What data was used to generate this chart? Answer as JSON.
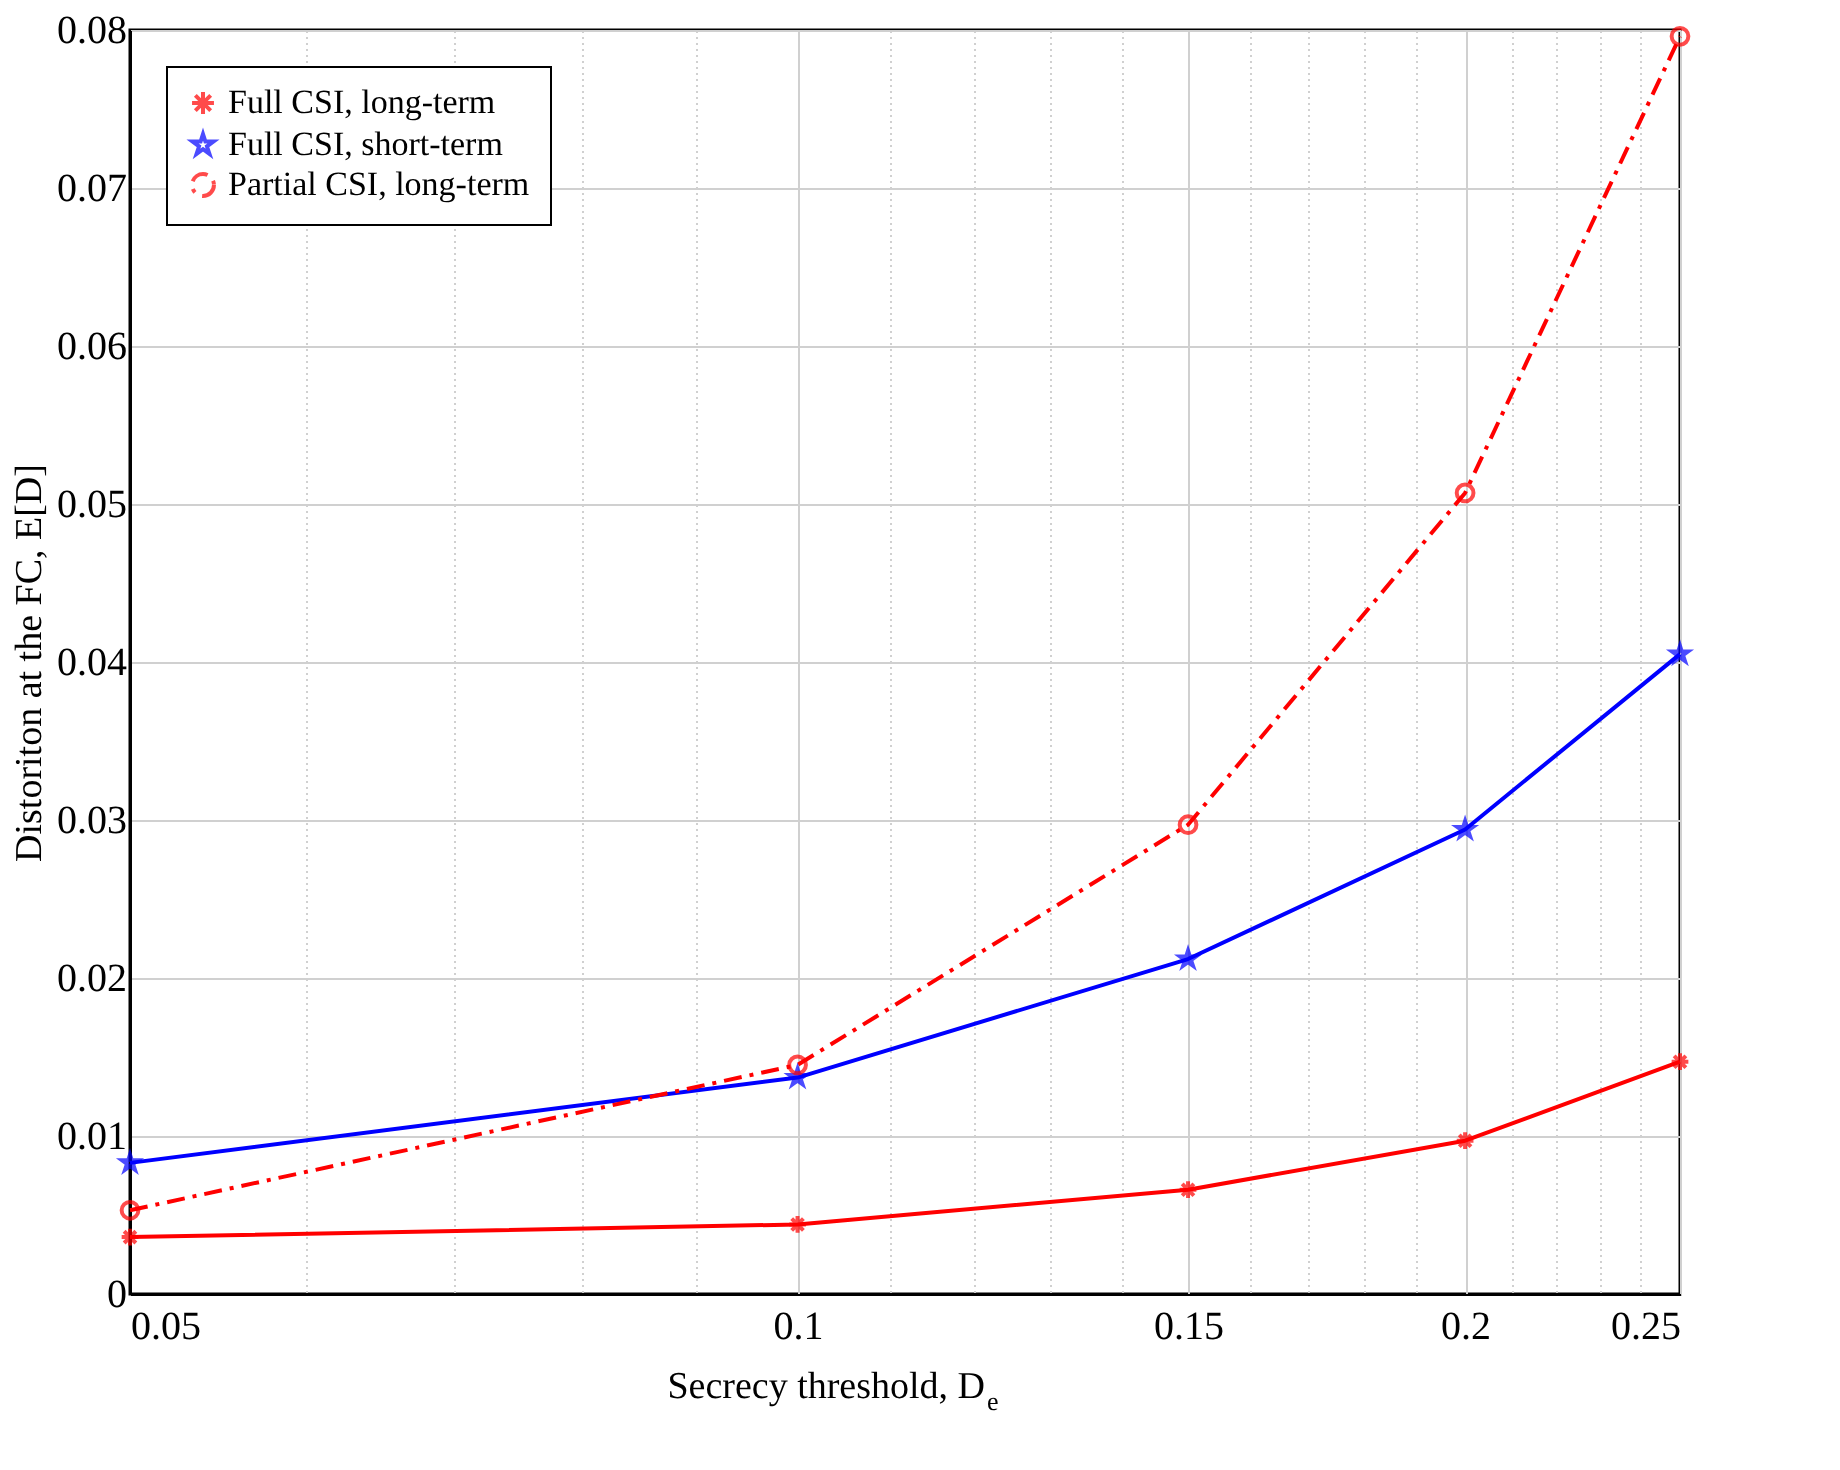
{
  "chart_data": {
    "type": "line",
    "xlabel": "Secrecy threshold, D$_{e}$",
    "ylabel": "Distoriton at the FC, E[D]",
    "x": [
      0.05,
      0.1,
      0.15,
      0.2,
      0.25
    ],
    "log": "x",
    "xlim": [
      0.05,
      0.25
    ],
    "ylim": [
      0,
      0.08
    ],
    "xticks": [
      0.05,
      {
        "value": 0.06,
        "label": null
      },
      {
        "value": 0.07,
        "label": null
      },
      {
        "value": 0.08,
        "label": null
      },
      {
        "value": 0.09,
        "label": null
      },
      0.1,
      {
        "value": 0.11,
        "label": null
      },
      {
        "value": 0.12,
        "label": null
      },
      {
        "value": 0.13,
        "label": null
      },
      {
        "value": 0.14,
        "label": null
      },
      0.15,
      {
        "value": 0.16,
        "label": null
      },
      {
        "value": 0.17,
        "label": null
      },
      {
        "value": 0.18,
        "label": null
      },
      {
        "value": 0.19,
        "label": null
      },
      0.2,
      {
        "value": 0.21,
        "label": null
      },
      {
        "value": 0.22,
        "label": null
      },
      {
        "value": 0.23,
        "label": null
      },
      {
        "value": 0.24,
        "label": null
      },
      0.25
    ],
    "yticks": [
      0,
      0.01,
      0.02,
      0.03,
      0.04,
      0.05,
      0.06,
      0.07,
      0.08
    ],
    "grid": true,
    "legend": "top left",
    "series": [
      {
        "name": "Full CSI, long-term",
        "color": "#ff0000",
        "marker": "cross",
        "line_style": "solid",
        "values": [
          0.0036,
          0.0044,
          0.0066,
          0.0097,
          0.0147
        ]
      },
      {
        "name": "Full CSI, short-term",
        "color": "#0000ff",
        "marker": "star",
        "line_style": "solid",
        "values": [
          0.0083,
          0.0137,
          0.0212,
          0.0294,
          0.0405
        ]
      },
      {
        "name": "Partial CSI, long-term",
        "color": "#ff0000",
        "marker": "circle",
        "line_style": "dashed",
        "values": [
          0.0053,
          0.0145,
          0.0297,
          0.0507,
          0.0796
        ]
      }
    ]
  }
}
